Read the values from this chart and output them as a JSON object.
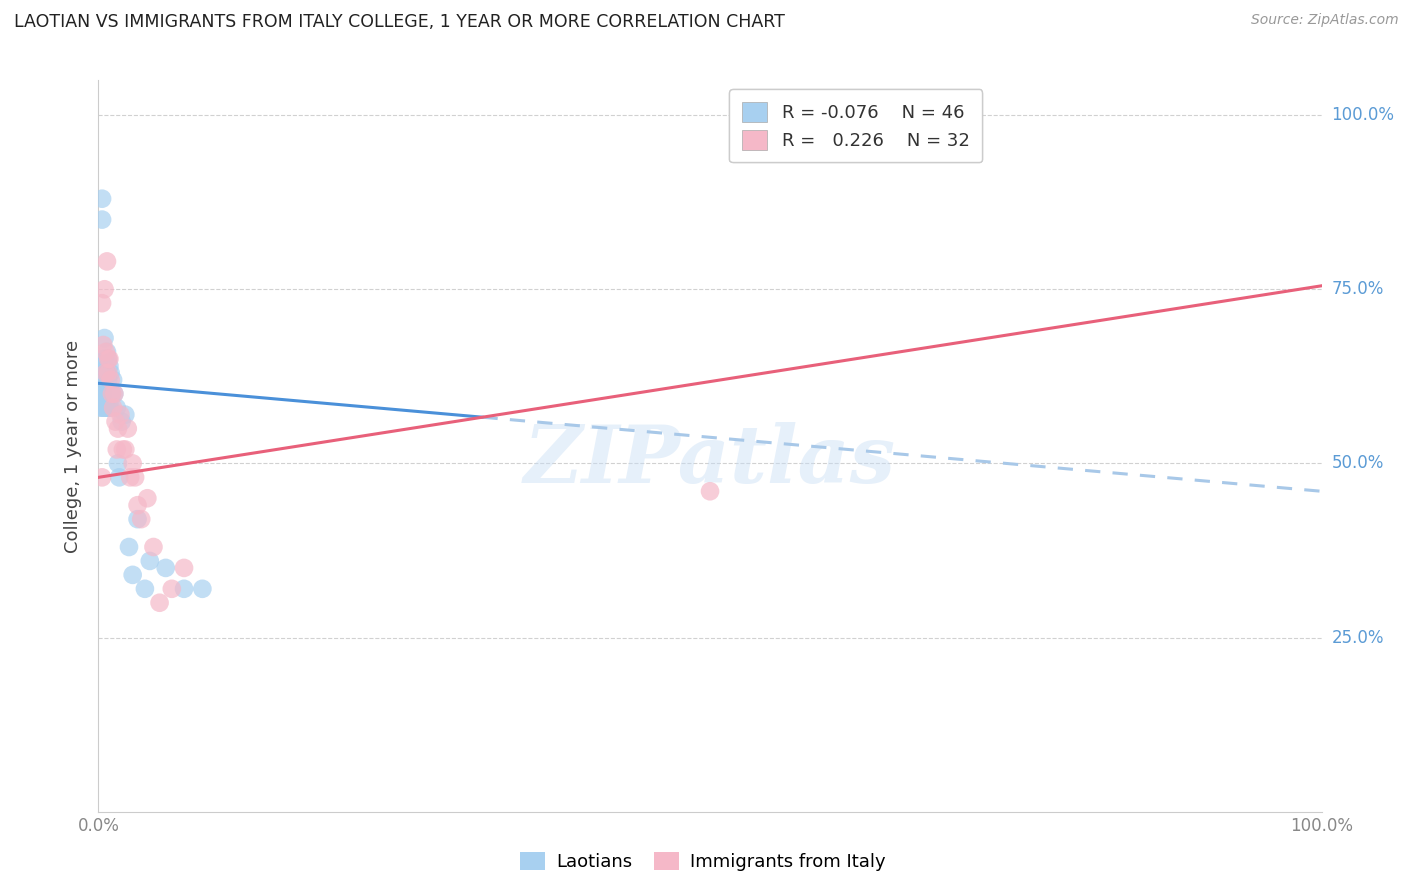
{
  "title": "LAOTIAN VS IMMIGRANTS FROM ITALY COLLEGE, 1 YEAR OR MORE CORRELATION CHART",
  "source": "Source: ZipAtlas.com",
  "ylabel": "College, 1 year or more",
  "legend_blue_r": "R = -0.076",
  "legend_blue_n": "N = 46",
  "legend_pink_r": "R =  0.226",
  "legend_pink_n": "N = 32",
  "legend_label_blue": "Laotians",
  "legend_label_pink": "Immigrants from Italy",
  "blue_color": "#a8d0f0",
  "pink_color": "#f5b8c8",
  "trendline_blue_solid_color": "#4a90d9",
  "trendline_blue_dash_color": "#a8c8e8",
  "trendline_pink_color": "#e8607a",
  "watermark_text": "ZIPatlas",
  "blue_x": [
    0.002,
    0.002,
    0.002,
    0.003,
    0.003,
    0.003,
    0.003,
    0.003,
    0.003,
    0.004,
    0.004,
    0.004,
    0.005,
    0.005,
    0.005,
    0.005,
    0.005,
    0.005,
    0.006,
    0.006,
    0.006,
    0.007,
    0.007,
    0.007,
    0.008,
    0.008,
    0.009,
    0.009,
    0.01,
    0.01,
    0.011,
    0.012,
    0.013,
    0.015,
    0.016,
    0.017,
    0.019,
    0.022,
    0.025,
    0.028,
    0.032,
    0.038,
    0.042,
    0.055,
    0.07,
    0.085
  ],
  "blue_y": [
    0.62,
    0.6,
    0.58,
    0.88,
    0.85,
    0.64,
    0.62,
    0.6,
    0.58,
    0.64,
    0.62,
    0.6,
    0.68,
    0.65,
    0.63,
    0.62,
    0.6,
    0.58,
    0.65,
    0.63,
    0.58,
    0.66,
    0.63,
    0.58,
    0.65,
    0.62,
    0.64,
    0.58,
    0.63,
    0.58,
    0.6,
    0.62,
    0.6,
    0.58,
    0.5,
    0.48,
    0.56,
    0.57,
    0.38,
    0.34,
    0.42,
    0.32,
    0.36,
    0.35,
    0.32,
    0.32
  ],
  "pink_x": [
    0.003,
    0.003,
    0.004,
    0.005,
    0.006,
    0.006,
    0.007,
    0.008,
    0.008,
    0.009,
    0.01,
    0.011,
    0.012,
    0.013,
    0.014,
    0.015,
    0.016,
    0.018,
    0.02,
    0.022,
    0.024,
    0.026,
    0.028,
    0.03,
    0.032,
    0.035,
    0.04,
    0.045,
    0.05,
    0.06,
    0.07,
    0.5
  ],
  "pink_y": [
    0.73,
    0.48,
    0.67,
    0.75,
    0.66,
    0.63,
    0.79,
    0.65,
    0.63,
    0.65,
    0.62,
    0.6,
    0.58,
    0.6,
    0.56,
    0.52,
    0.55,
    0.57,
    0.52,
    0.52,
    0.55,
    0.48,
    0.5,
    0.48,
    0.44,
    0.42,
    0.45,
    0.38,
    0.3,
    0.32,
    0.35,
    0.46
  ],
  "blue_trend_x0": 0.0,
  "blue_trend_x1": 1.0,
  "blue_trend_y0": 0.615,
  "blue_trend_y1": 0.46,
  "pink_trend_x0": 0.0,
  "pink_trend_x1": 1.0,
  "pink_trend_y0": 0.48,
  "pink_trend_y1": 0.755,
  "xlim": [
    0.0,
    1.0
  ],
  "ylim": [
    0.0,
    1.05
  ],
  "yticks": [
    0.25,
    0.5,
    0.75,
    1.0
  ],
  "ytick_labels": [
    "25.0%",
    "50.0%",
    "75.0%",
    "100.0%"
  ],
  "xticks": [
    0.0,
    1.0
  ],
  "xtick_labels": [
    "0.0%",
    "100.0%"
  ]
}
